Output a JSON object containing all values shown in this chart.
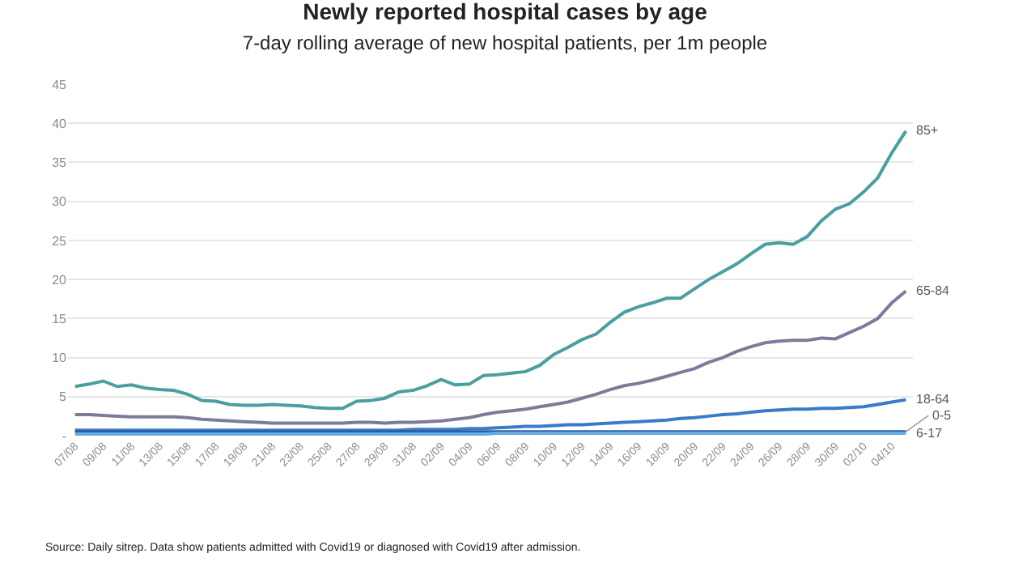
{
  "chart_data": {
    "type": "line",
    "title": "Newly reported hospital cases by age",
    "subtitle": "7-day rolling average of new hospital patients, per 1m people",
    "categories": [
      "07/08",
      null,
      "09/08",
      null,
      "11/08",
      null,
      "13/08",
      null,
      "15/08",
      null,
      "17/08",
      null,
      "19/08",
      null,
      "21/08",
      null,
      "23/08",
      null,
      "25/08",
      null,
      "27/08",
      null,
      "29/08",
      null,
      "31/08",
      null,
      "02/09",
      null,
      "04/09",
      null,
      "06/09",
      null,
      "08/09",
      null,
      "10/09",
      null,
      "12/09",
      null,
      "14/09",
      null,
      "16/09",
      null,
      "18/09",
      null,
      "20/09",
      null,
      "22/09",
      null,
      "24/09",
      null,
      "26/09",
      null,
      "28/09",
      null,
      "30/09",
      null,
      "02/10",
      null,
      "04/10",
      null
    ],
    "series": [
      {
        "name": "85+",
        "color": "#4a9fa0",
        "values": [
          6.3,
          6.6,
          7.0,
          6.3,
          6.5,
          6.1,
          5.9,
          5.8,
          5.3,
          4.5,
          4.4,
          4.0,
          3.9,
          3.9,
          4.0,
          3.9,
          3.8,
          3.6,
          3.5,
          3.5,
          4.4,
          4.5,
          4.8,
          5.6,
          5.8,
          6.4,
          7.2,
          6.5,
          6.6,
          7.7,
          7.8,
          8.0,
          8.2,
          9.0,
          10.4,
          11.3,
          12.3,
          13.0,
          14.5,
          15.8,
          16.5,
          17.0,
          17.6,
          17.6,
          18.8,
          20.0,
          21.0,
          22.0,
          23.3,
          24.5,
          24.7,
          24.5,
          25.5,
          27.5,
          29.0,
          29.7,
          31.2,
          33.0,
          36.2,
          39.0
        ]
      },
      {
        "name": "65-84",
        "color": "#7a7c9a",
        "values": [
          2.7,
          2.7,
          2.6,
          2.5,
          2.4,
          2.4,
          2.4,
          2.4,
          2.3,
          2.1,
          2.0,
          1.9,
          1.8,
          1.7,
          1.6,
          1.6,
          1.6,
          1.6,
          1.6,
          1.6,
          1.7,
          1.7,
          1.6,
          1.7,
          1.7,
          1.8,
          1.9,
          2.1,
          2.3,
          2.7,
          3.0,
          3.2,
          3.4,
          3.7,
          4.0,
          4.3,
          4.8,
          5.3,
          5.9,
          6.4,
          6.7,
          7.1,
          7.6,
          8.1,
          8.6,
          9.4,
          10.0,
          10.8,
          11.4,
          11.9,
          12.1,
          12.2,
          12.2,
          12.5,
          12.4,
          13.2,
          14.0,
          15.0,
          17.0,
          18.5
        ]
      },
      {
        "name": "18-64",
        "color": "#3a7bc8",
        "values": [
          0.7,
          0.7,
          0.7,
          0.7,
          0.7,
          0.7,
          0.7,
          0.7,
          0.7,
          0.7,
          0.7,
          0.7,
          0.7,
          0.7,
          0.7,
          0.7,
          0.7,
          0.7,
          0.7,
          0.7,
          0.7,
          0.7,
          0.7,
          0.7,
          0.8,
          0.8,
          0.8,
          0.8,
          0.9,
          0.9,
          1.0,
          1.1,
          1.2,
          1.2,
          1.3,
          1.4,
          1.4,
          1.5,
          1.6,
          1.7,
          1.8,
          1.9,
          2.0,
          2.2,
          2.3,
          2.5,
          2.7,
          2.8,
          3.0,
          3.2,
          3.3,
          3.4,
          3.4,
          3.5,
          3.5,
          3.6,
          3.7,
          4.0,
          4.3,
          4.6
        ]
      },
      {
        "name": "0-5",
        "color": "#2d5ea6",
        "values": [
          0.5,
          0.5,
          0.5,
          0.5,
          0.5,
          0.5,
          0.5,
          0.5,
          0.5,
          0.5,
          0.5,
          0.5,
          0.5,
          0.5,
          0.5,
          0.5,
          0.5,
          0.5,
          0.5,
          0.5,
          0.5,
          0.5,
          0.5,
          0.5,
          0.5,
          0.5,
          0.5,
          0.5,
          0.5,
          0.5,
          0.5,
          0.5,
          0.5,
          0.5,
          0.5,
          0.5,
          0.5,
          0.5,
          0.5,
          0.5,
          0.5,
          0.5,
          0.5,
          0.5,
          0.5,
          0.5,
          0.5,
          0.5,
          0.5,
          0.5,
          0.5,
          0.5,
          0.5,
          0.5,
          0.5,
          0.5,
          0.5,
          0.5,
          0.5,
          0.5
        ]
      },
      {
        "name": "6-17",
        "color": "#62aee2",
        "values": [
          0.2,
          0.2,
          0.2,
          0.2,
          0.2,
          0.2,
          0.2,
          0.2,
          0.2,
          0.2,
          0.2,
          0.2,
          0.2,
          0.2,
          0.2,
          0.2,
          0.2,
          0.2,
          0.2,
          0.2,
          0.2,
          0.2,
          0.2,
          0.2,
          0.2,
          0.2,
          0.2,
          0.2,
          0.2,
          0.2,
          0.3,
          0.3,
          0.3,
          0.3,
          0.3,
          0.3,
          0.3,
          0.3,
          0.3,
          0.3,
          0.3,
          0.3,
          0.3,
          0.3,
          0.3,
          0.3,
          0.3,
          0.3,
          0.3,
          0.3,
          0.3,
          0.3,
          0.3,
          0.3,
          0.3,
          0.3,
          0.3,
          0.3,
          0.3,
          0.3
        ]
      }
    ],
    "ylim": [
      0,
      45
    ],
    "yticks": [
      {
        "value": 0,
        "label": "-"
      },
      5,
      10,
      15,
      20,
      25,
      30,
      35,
      40,
      45
    ],
    "grid": "y",
    "legend": false,
    "marker": "none",
    "line_style": "solid",
    "annotations": [
      "Source: Daily sitrep. Data show patients admitted with Covid19 or diagnosed with Covid19 after admission."
    ]
  }
}
